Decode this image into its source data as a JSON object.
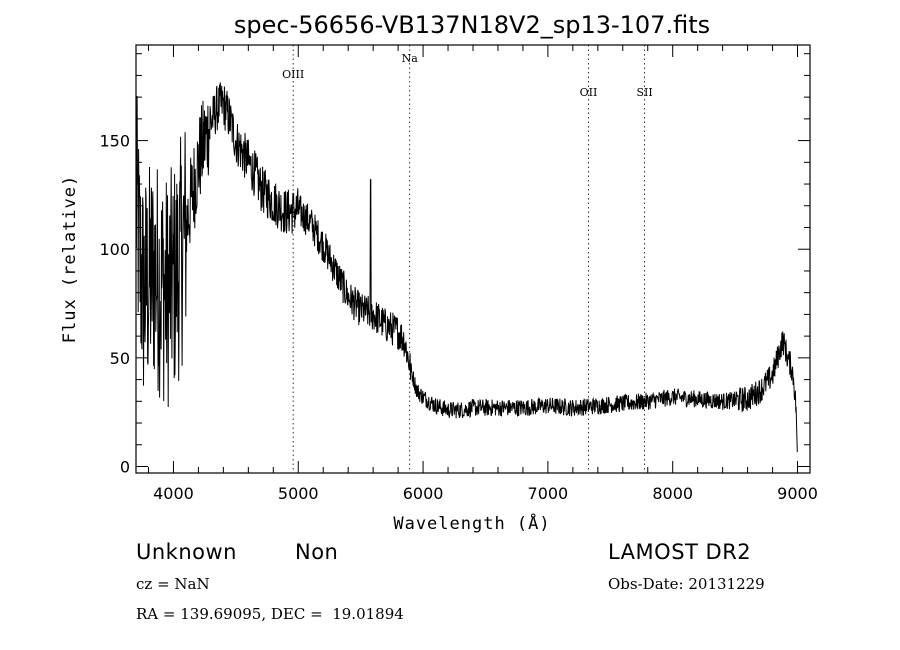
{
  "chart_data": {
    "type": "line",
    "title": "spec-56656-VB137N18V2_sp13-107.fits",
    "xlabel": "Wavelength (Å)",
    "ylabel": "Flux (relative)",
    "xlim": [
      3700,
      9100
    ],
    "ylim": [
      -3,
      194
    ],
    "xticks": [
      4000,
      5000,
      6000,
      7000,
      8000,
      9000
    ],
    "yticks": [
      0,
      50,
      100,
      150
    ],
    "lines": [
      {
        "label": "OIII",
        "x": 4959
      },
      {
        "label": "Na",
        "x": 5893
      },
      {
        "label": "OII",
        "x": 7325
      },
      {
        "label": "SII",
        "x": 7775
      }
    ],
    "series": [
      {
        "x": [
          3700,
          3730,
          3760,
          3800,
          3850,
          3900,
          3950,
          4000,
          4050,
          4100,
          4150,
          4200,
          4250,
          4300,
          4350,
          4400,
          4450,
          4500,
          4550,
          4600,
          4650,
          4700,
          4800,
          4900,
          5000,
          5100,
          5200,
          5300,
          5400,
          5500,
          5600,
          5700,
          5800,
          5850,
          5900,
          5950,
          6000,
          6100,
          6200,
          6300,
          6400,
          6600,
          6800,
          7000,
          7200,
          7400,
          7600,
          7800,
          8000,
          8200,
          8400,
          8600,
          8700,
          8800,
          8850,
          8880,
          8900,
          8920,
          8950,
          8970,
          8990,
          9000
        ],
        "y": [
          125,
          95,
          80,
          85,
          90,
          85,
          80,
          85,
          95,
          110,
          125,
          140,
          150,
          158,
          165,
          167,
          160,
          150,
          145,
          140,
          135,
          128,
          122,
          117,
          118,
          112,
          102,
          90,
          78,
          72,
          70,
          65,
          62,
          58,
          45,
          35,
          32,
          28,
          26,
          26,
          27,
          27,
          27,
          28,
          27,
          28,
          29,
          30,
          32,
          31,
          30,
          31,
          35,
          42,
          52,
          58,
          55,
          50,
          46,
          40,
          25,
          2
        ]
      }
    ]
  },
  "info": {
    "class": "Unknown",
    "subclass": "Non",
    "survey": "LAMOST DR2",
    "cz": "cz = NaN",
    "obs_date": "Obs-Date: 20131229",
    "coords": "RA = 139.69095, DEC =  19.01894"
  }
}
